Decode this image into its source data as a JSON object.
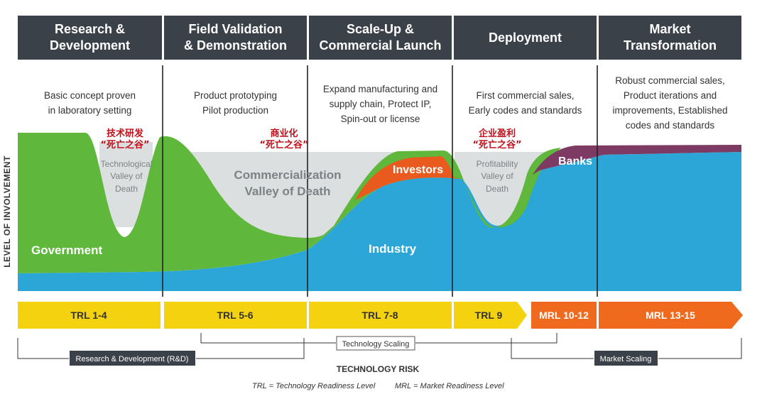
{
  "stages": [
    {
      "title": "Research &\nDevelopment",
      "description": "Basic concept proven\nin laboratory setting"
    },
    {
      "title": "Field Validation\n& Demonstration",
      "description": "Product prototyping\nPilot production"
    },
    {
      "title": "Scale-Up &\nCommercial Launch",
      "description": "Expand manufacturing and\nsupply chain, Protect IP,\nSpin-out or license"
    },
    {
      "title": "Deployment",
      "description": "First commercial sales,\nEarly codes and standards"
    },
    {
      "title": "Market\nTransformation",
      "description": "Robust commercial sales,\nProduct iterations and\nimprovements, Established\ncodes and standards"
    }
  ],
  "valleys": {
    "technological": {
      "cn_top": "技术研发",
      "cn_bottom": "“死亡之谷”",
      "en": "Technological\nValley of\nDeath"
    },
    "commercialization": {
      "cn_top": "商业化",
      "cn_bottom": "“死亡之谷”",
      "en": "Commercialization\nValley of Death"
    },
    "profitability": {
      "cn_top": "企业盈利",
      "cn_bottom": "“死亡之谷”",
      "en": "Profitability\nValley of\nDeath"
    }
  },
  "actors": {
    "government": "Government",
    "industry": "Industry",
    "investors": "Investors",
    "banks": "Banks"
  },
  "y_axis_label": "LEVEL OF INVOLVEMENT",
  "readiness": [
    {
      "label": "TRL 1-4",
      "kind": "trl"
    },
    {
      "label": "TRL 5-6",
      "kind": "trl"
    },
    {
      "label": "TRL 7-8",
      "kind": "trl"
    },
    {
      "label": "TRL 9",
      "kind": "trl"
    },
    {
      "label": "MRL 10-12",
      "kind": "mrl"
    },
    {
      "label": "MRL 13-15",
      "kind": "mrl"
    }
  ],
  "brackets": {
    "technology_scaling": "Technology Scaling",
    "rnd": "Research & Development (R&D)",
    "market_scaling": "Market Scaling"
  },
  "x_axis_label": "TECHNOLOGY RISK",
  "footnotes": {
    "trl": "TRL = Technology Readiness Level",
    "mrl": "MRL = Market Readiness Level"
  },
  "colors": {
    "header": "#3b4148",
    "government": "#5fb83c",
    "industry": "#2ba6d7",
    "investors": "#e85a1d",
    "banks": "#7d3a63",
    "valley": "#dcdfe0",
    "trl": "#f5d20f",
    "mrl": "#f06a1e",
    "chinese_text": "#c0121c"
  }
}
